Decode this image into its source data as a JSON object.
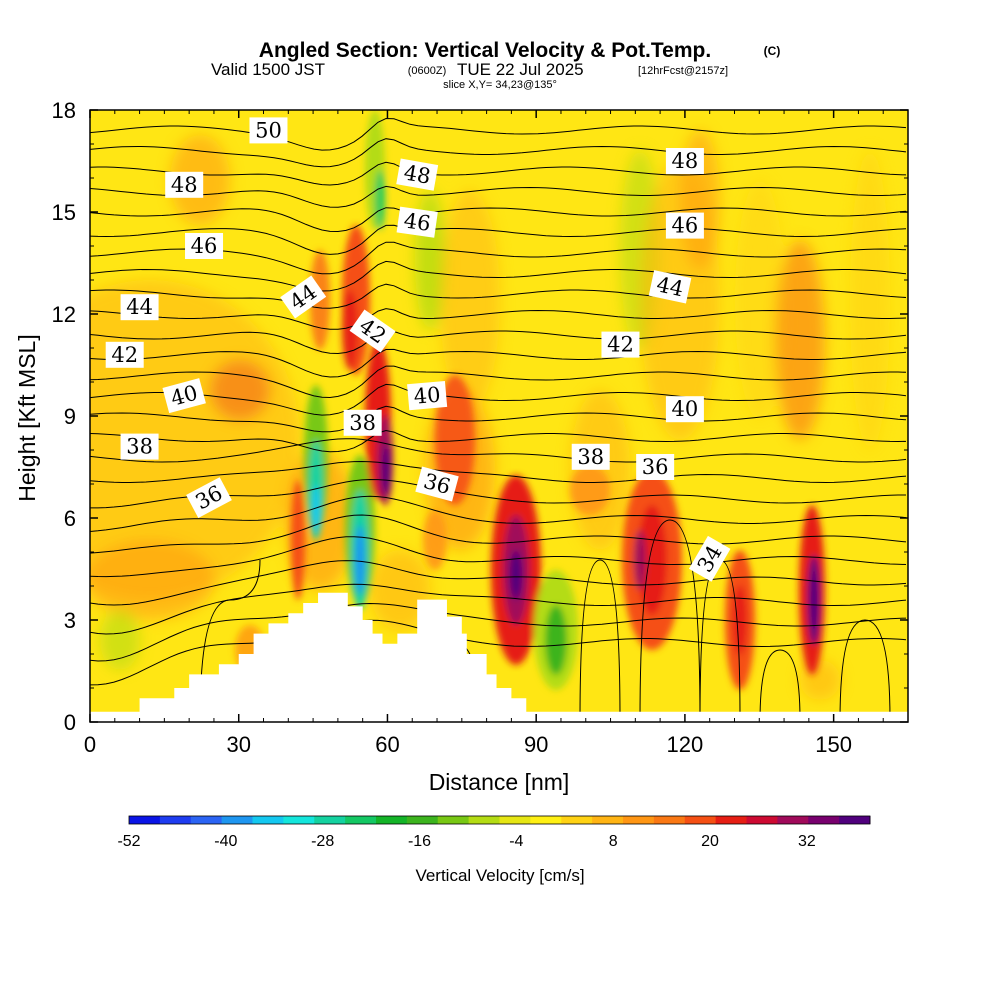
{
  "title": {
    "main": "Angled Section: Vertical Velocity & Pot.Temp.",
    "copyright": "(C)",
    "valid_prefix": "Valid 1500 JST",
    "valid_utc": "(0600Z)",
    "valid_date": "TUE 22 Jul 2025",
    "forecast": "[12hrFcst@2157z]",
    "slice": "slice X,Y= 34,23@135°"
  },
  "chart_data": {
    "type": "heatmap",
    "xlabel": "Distance [nm]",
    "ylabel": "Height [Kft MSL]",
    "xlim": [
      0,
      165
    ],
    "ylim": [
      0,
      18
    ],
    "x_ticks": [
      0,
      30,
      60,
      90,
      120,
      150
    ],
    "y_ticks": [
      0,
      3,
      6,
      9,
      12,
      15,
      18
    ],
    "shaded_field": "Vertical Velocity [cm/s]",
    "contour_field": "Potential Temperature",
    "colorbar": {
      "label": "Vertical Velocity [cm/s]",
      "tick_labels": [
        -52,
        -40,
        -28,
        -16,
        -4,
        8,
        20,
        32
      ],
      "levels": [
        -52,
        -48,
        -44,
        -40,
        -36,
        -32,
        -28,
        -24,
        -20,
        -16,
        -12,
        -8,
        -4,
        0,
        4,
        8,
        12,
        16,
        20,
        24,
        28,
        32,
        36
      ],
      "colors": [
        "#0a14e6",
        "#1e3cf0",
        "#2b64f4",
        "#1e96f0",
        "#14c8f0",
        "#14e6dc",
        "#14d2a0",
        "#14c864",
        "#14b428",
        "#3cb41e",
        "#78c814",
        "#b4dc14",
        "#e6e614",
        "#fff014",
        "#ffd214",
        "#ffb414",
        "#ff9614",
        "#fa7814",
        "#f55014",
        "#e61e14",
        "#cd0a32",
        "#a00a5a",
        "#78006e",
        "#50007d"
      ]
    },
    "terrain_profile": [
      {
        "x": 0,
        "y": 0.3
      },
      {
        "x": 10,
        "y": 0.3
      },
      {
        "x": 10,
        "y": 0.7
      },
      {
        "x": 17,
        "y": 0.7
      },
      {
        "x": 17,
        "y": 1.0
      },
      {
        "x": 20,
        "y": 1.0
      },
      {
        "x": 20,
        "y": 1.4
      },
      {
        "x": 26,
        "y": 1.4
      },
      {
        "x": 26,
        "y": 1.7
      },
      {
        "x": 30,
        "y": 1.7
      },
      {
        "x": 30,
        "y": 2.0
      },
      {
        "x": 33,
        "y": 2.0
      },
      {
        "x": 33,
        "y": 2.6
      },
      {
        "x": 36,
        "y": 2.6
      },
      {
        "x": 36,
        "y": 2.9
      },
      {
        "x": 40,
        "y": 2.9
      },
      {
        "x": 40,
        "y": 3.2
      },
      {
        "x": 43,
        "y": 3.2
      },
      {
        "x": 43,
        "y": 3.5
      },
      {
        "x": 46,
        "y": 3.5
      },
      {
        "x": 46,
        "y": 3.8
      },
      {
        "x": 52,
        "y": 3.8
      },
      {
        "x": 52,
        "y": 3.4
      },
      {
        "x": 55,
        "y": 3.4
      },
      {
        "x": 55,
        "y": 3.0
      },
      {
        "x": 57,
        "y": 3.0
      },
      {
        "x": 57,
        "y": 2.6
      },
      {
        "x": 59,
        "y": 2.6
      },
      {
        "x": 59,
        "y": 2.3
      },
      {
        "x": 62,
        "y": 2.3
      },
      {
        "x": 62,
        "y": 2.6
      },
      {
        "x": 66,
        "y": 2.6
      },
      {
        "x": 66,
        "y": 3.6
      },
      {
        "x": 72,
        "y": 3.6
      },
      {
        "x": 72,
        "y": 3.1
      },
      {
        "x": 75,
        "y": 3.1
      },
      {
        "x": 75,
        "y": 2.6
      },
      {
        "x": 76,
        "y": 2.6
      },
      {
        "x": 76,
        "y": 2.0
      },
      {
        "x": 80,
        "y": 2.0
      },
      {
        "x": 80,
        "y": 1.4
      },
      {
        "x": 82,
        "y": 1.4
      },
      {
        "x": 82,
        "y": 1.0
      },
      {
        "x": 85,
        "y": 1.0
      },
      {
        "x": 85,
        "y": 0.7
      },
      {
        "x": 88,
        "y": 0.7
      },
      {
        "x": 88,
        "y": 0.3
      },
      {
        "x": 165,
        "y": 0.3
      }
    ],
    "contour_labels": [
      {
        "text": "50",
        "x": 36,
        "y": 17.4,
        "rot": 0
      },
      {
        "text": "48",
        "x": 19,
        "y": 15.8,
        "rot": 0
      },
      {
        "text": "48",
        "x": 66,
        "y": 16.1,
        "rot": 10
      },
      {
        "text": "48",
        "x": 120,
        "y": 16.5,
        "rot": 0
      },
      {
        "text": "46",
        "x": 23,
        "y": 14.0,
        "rot": 0
      },
      {
        "text": "46",
        "x": 66,
        "y": 14.7,
        "rot": 8
      },
      {
        "text": "46",
        "x": 120,
        "y": 14.6,
        "rot": 0
      },
      {
        "text": "44",
        "x": 10,
        "y": 12.2,
        "rot": 0
      },
      {
        "text": "44",
        "x": 43,
        "y": 12.5,
        "rot": -35
      },
      {
        "text": "44",
        "x": 117,
        "y": 12.8,
        "rot": 12
      },
      {
        "text": "42",
        "x": 7,
        "y": 10.8,
        "rot": 0
      },
      {
        "text": "42",
        "x": 57,
        "y": 11.5,
        "rot": 35
      },
      {
        "text": "42",
        "x": 107,
        "y": 11.1,
        "rot": 0
      },
      {
        "text": "40",
        "x": 19,
        "y": 9.6,
        "rot": -15
      },
      {
        "text": "40",
        "x": 68,
        "y": 9.6,
        "rot": -5
      },
      {
        "text": "40",
        "x": 120,
        "y": 9.2,
        "rot": 0
      },
      {
        "text": "38",
        "x": 10,
        "y": 8.1,
        "rot": 0
      },
      {
        "text": "38",
        "x": 55,
        "y": 8.8,
        "rot": 0
      },
      {
        "text": "38",
        "x": 101,
        "y": 7.8,
        "rot": 0
      },
      {
        "text": "36",
        "x": 24,
        "y": 6.6,
        "rot": -28
      },
      {
        "text": "36",
        "x": 70,
        "y": 7.0,
        "rot": 15
      },
      {
        "text": "36",
        "x": 114,
        "y": 7.5,
        "rot": 0
      },
      {
        "text": "34",
        "x": 125,
        "y": 4.8,
        "rot": -60
      }
    ]
  }
}
